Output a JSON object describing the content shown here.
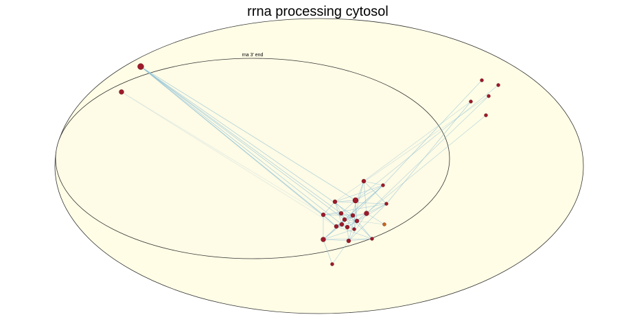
{
  "title": "rrna processing cytosol",
  "inner_group_label": "rna 3' end",
  "colors": {
    "background": "#ffffff",
    "ellipse_fill": "#fffde6",
    "inner_fill": "#fefbe6",
    "ellipse_stroke": "#333333",
    "edge": "#8fc1d6",
    "node": "#9c1a2a",
    "node_alt": "#c86a1a"
  }
}
